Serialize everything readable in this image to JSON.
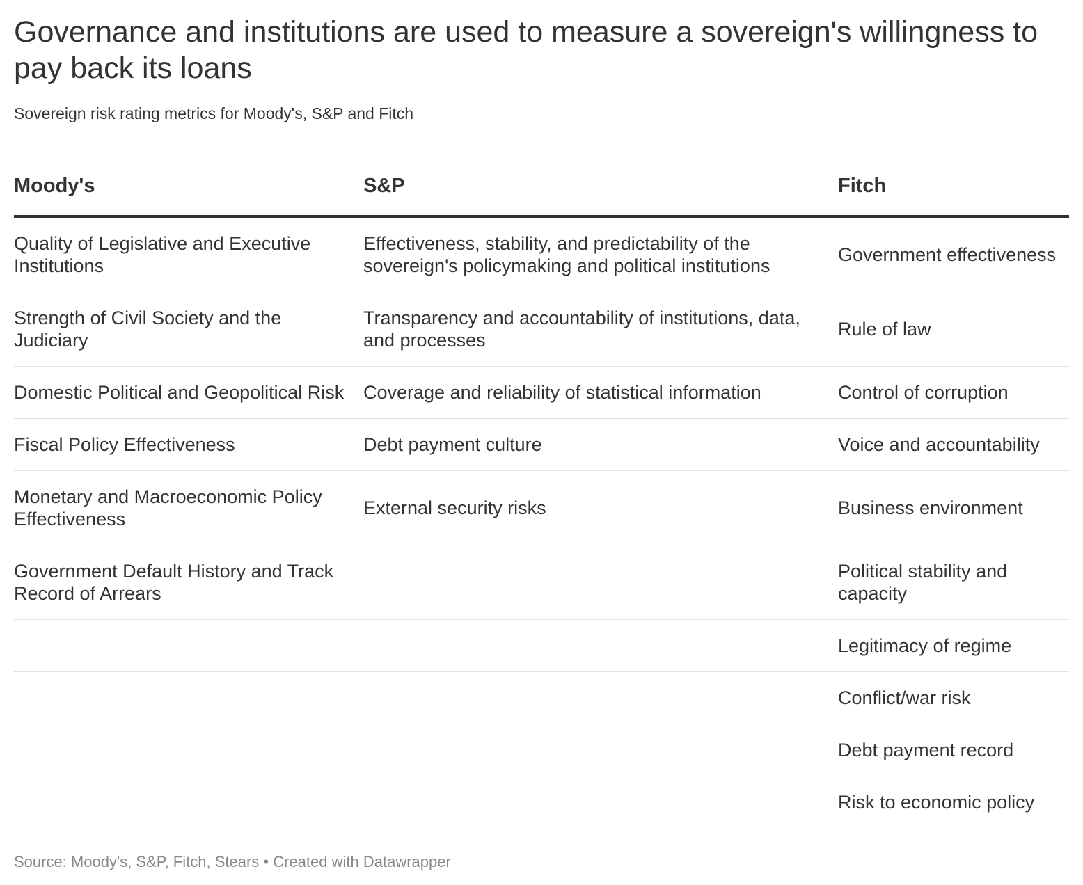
{
  "title": "Governance and institutions are used to measure a sovereign's willingness to pay back its loans",
  "subtitle": "Sovereign risk rating metrics for Moody's, S&P and Fitch",
  "footer": {
    "source": "Source: Moody's, S&P, Fitch, Stears",
    "separator": "•",
    "credit": "Created with Datawrapper"
  },
  "chart_data": {
    "type": "table",
    "columns": [
      "Moody's",
      "S&P",
      "Fitch"
    ],
    "rows": [
      [
        "Quality of Legislative and Executive Institutions",
        "Effectiveness, stability, and predictability of the sovereign's policymaking and political institutions",
        "Government effectiveness"
      ],
      [
        "Strength of Civil Society and the Judiciary",
        "Transparency and accountability of institutions, data, and processes",
        "Rule of law"
      ],
      [
        "Domestic Political and Geopolitical Risk",
        "Coverage and reliability of statistical information",
        "Control of corruption"
      ],
      [
        "Fiscal Policy Effectiveness",
        "Debt payment culture",
        "Voice and accountability"
      ],
      [
        "Monetary and Macroeconomic Policy Effectiveness",
        "External security risks",
        "Business environment"
      ],
      [
        "Government Default History and Track Record of Arrears",
        "",
        "Political stability and capacity"
      ],
      [
        "",
        "",
        "Legitimacy of regime"
      ],
      [
        "",
        "",
        "Conflict/war risk"
      ],
      [
        "",
        "",
        "Debt payment record"
      ],
      [
        "",
        "",
        "Risk to economic policy"
      ]
    ]
  }
}
